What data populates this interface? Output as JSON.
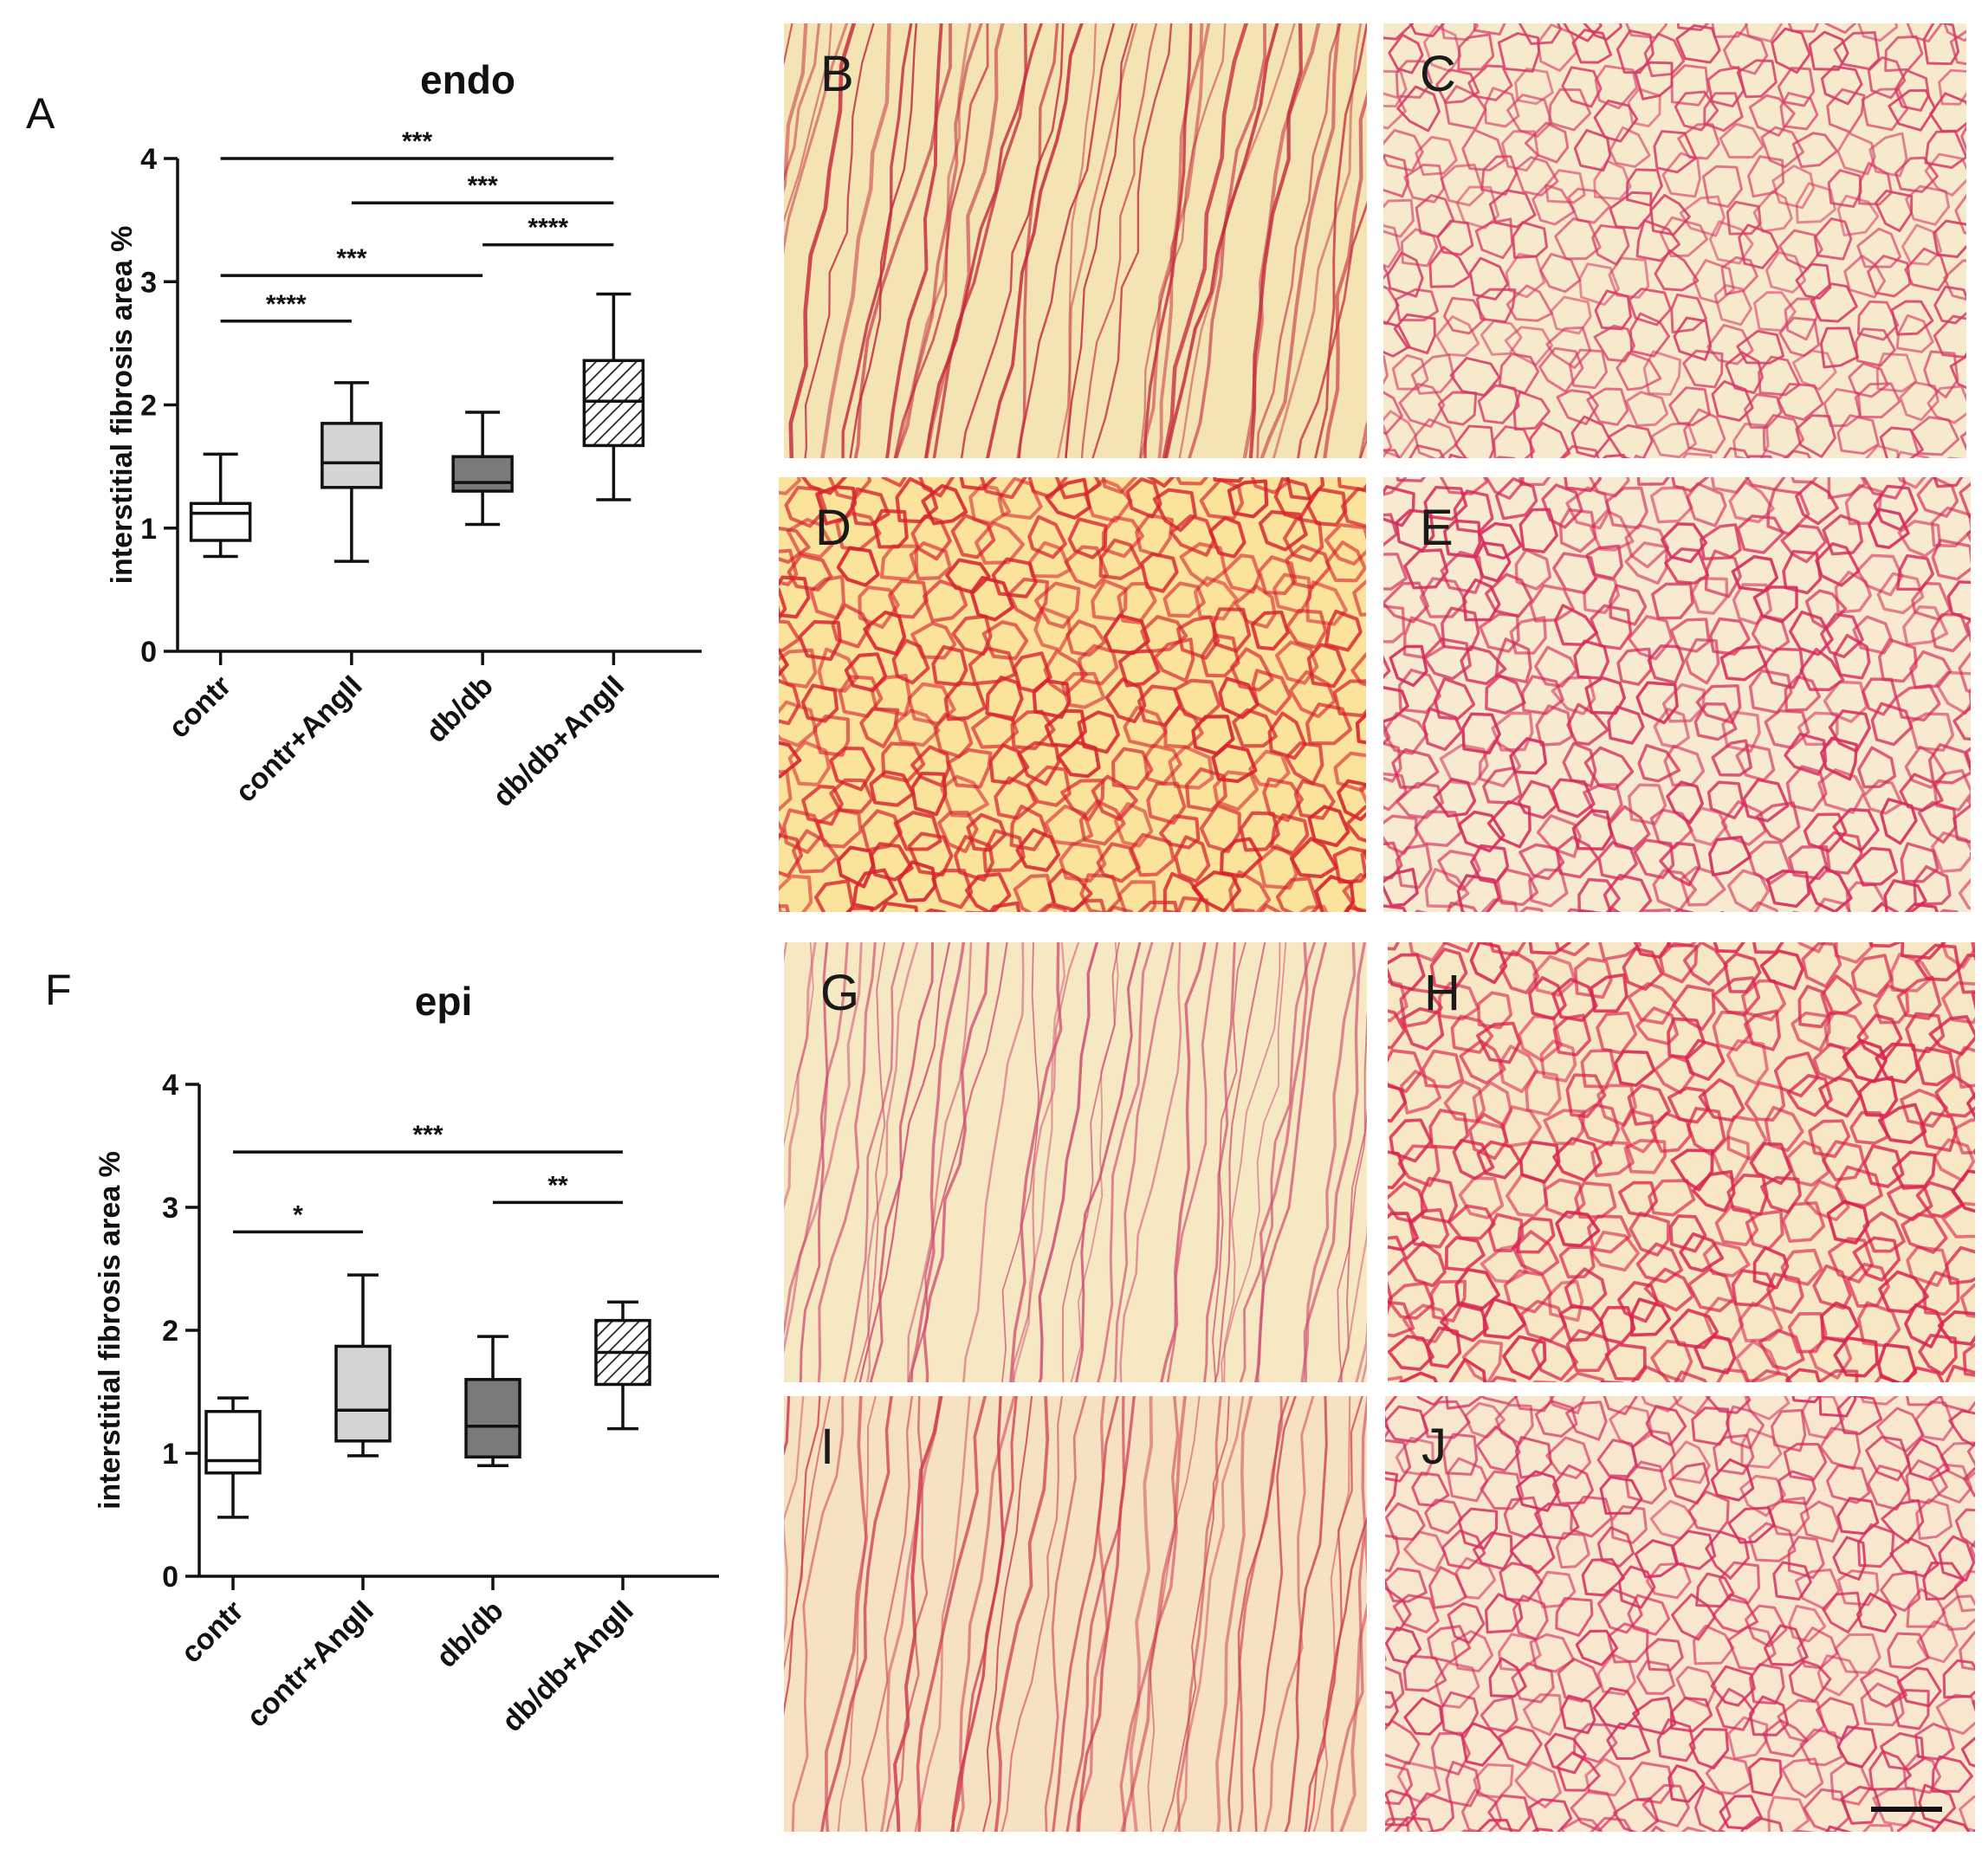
{
  "chart_data": [
    {
      "panel_label": "A",
      "type": "box",
      "title": "endo",
      "ylabel": "interstitial fibrosis area %",
      "ylim": [
        0,
        4
      ],
      "yticks": [
        "0",
        "1",
        "2",
        "3",
        "4"
      ],
      "categories": [
        "contr",
        "contr+AngII",
        "db/db",
        "db/db+AngII"
      ],
      "boxes": [
        {
          "min": 0.77,
          "q1": 0.9,
          "median": 1.12,
          "q3": 1.2,
          "max": 1.6,
          "fill": "#ffffff"
        },
        {
          "min": 0.73,
          "q1": 1.33,
          "median": 1.53,
          "q3": 1.85,
          "max": 2.18,
          "fill": "#d4d4d4"
        },
        {
          "min": 1.03,
          "q1": 1.3,
          "median": 1.37,
          "q3": 1.58,
          "max": 1.94,
          "fill": "#7a7a7a"
        },
        {
          "min": 1.23,
          "q1": 1.67,
          "median": 2.03,
          "q3": 2.36,
          "max": 2.9,
          "fill": "hatch"
        }
      ],
      "comparisons": [
        {
          "from": 0,
          "to": 3,
          "y": 4.0,
          "label": "***"
        },
        {
          "from": 1,
          "to": 3,
          "y": 3.64,
          "label": "***"
        },
        {
          "from": 2,
          "to": 3,
          "y": 3.3,
          "label": "****"
        },
        {
          "from": 0,
          "to": 2,
          "y": 3.05,
          "label": "***"
        },
        {
          "from": 0,
          "to": 1,
          "y": 2.68,
          "label": "****"
        }
      ]
    },
    {
      "panel_label": "F",
      "type": "box",
      "title": "epi",
      "ylabel": "interstitial fibrosis area %",
      "ylim": [
        0,
        4
      ],
      "yticks": [
        "0",
        "1",
        "2",
        "3",
        "4"
      ],
      "categories": [
        "contr",
        "contr+AngII",
        "db/db",
        "db/db+AngII"
      ],
      "boxes": [
        {
          "min": 0.48,
          "q1": 0.84,
          "median": 0.94,
          "q3": 1.34,
          "max": 1.45,
          "fill": "#ffffff"
        },
        {
          "min": 0.98,
          "q1": 1.1,
          "median": 1.35,
          "q3": 1.87,
          "max": 2.45,
          "fill": "#d4d4d4"
        },
        {
          "min": 0.9,
          "q1": 0.97,
          "median": 1.22,
          "q3": 1.6,
          "max": 1.95,
          "fill": "#7a7a7a"
        },
        {
          "min": 1.2,
          "q1": 1.56,
          "median": 1.82,
          "q3": 2.08,
          "max": 2.23,
          "fill": "hatch"
        }
      ],
      "comparisons": [
        {
          "from": 0,
          "to": 3,
          "y": 3.45,
          "label": "***"
        },
        {
          "from": 2,
          "to": 3,
          "y": 3.04,
          "label": "**"
        },
        {
          "from": 0,
          "to": 1,
          "y": 2.8,
          "label": "*"
        }
      ]
    }
  ],
  "micrographs": [
    {
      "label": "B",
      "tint": "#f4e4b4",
      "stain": "#c4283a",
      "weight": 0.8,
      "pattern": "longitudinal"
    },
    {
      "label": "C",
      "tint": "#f7e9cc",
      "stain": "#d63a66",
      "weight": 0.55,
      "pattern": "cross"
    },
    {
      "label": "D",
      "tint": "#fbe39c",
      "stain": "#d7222c",
      "weight": 1.0,
      "pattern": "cross"
    },
    {
      "label": "E",
      "tint": "#f7ead0",
      "stain": "#d52a5a",
      "weight": 0.75,
      "pattern": "cross"
    },
    {
      "label": "G",
      "tint": "#f5e8c2",
      "stain": "#d04a70",
      "weight": 0.45,
      "pattern": "longitudinal"
    },
    {
      "label": "H",
      "tint": "#f8e7c4",
      "stain": "#d9234d",
      "weight": 0.85,
      "pattern": "cross"
    },
    {
      "label": "I",
      "tint": "#f6e2c3",
      "stain": "#cf3b4e",
      "weight": 0.6,
      "pattern": "longitudinal"
    },
    {
      "label": "J",
      "tint": "#f8e6cf",
      "stain": "#d52d5e",
      "weight": 0.6,
      "pattern": "cross"
    }
  ]
}
